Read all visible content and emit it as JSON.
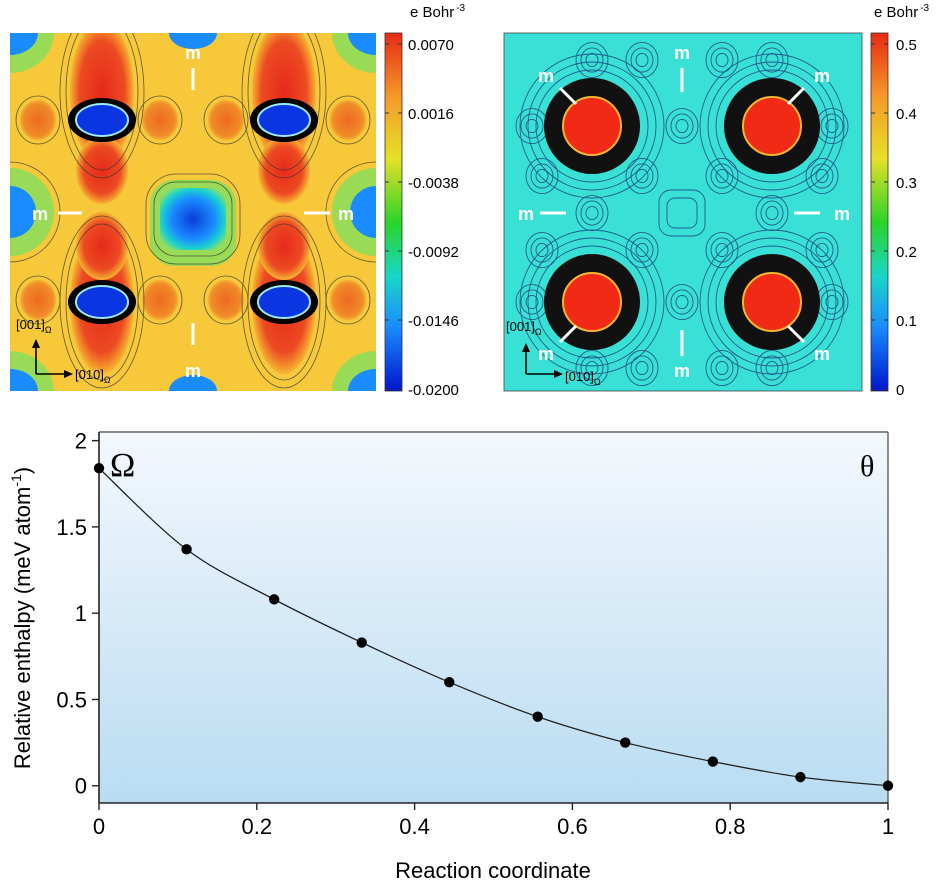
{
  "map_left": {
    "colorbar_unit": "e Bohr",
    "colorbar_unit_exp": "-3",
    "colorbar_ticks": [
      "0.0070",
      "0.0016",
      "-0.0038",
      "-0.0092",
      "-0.0146",
      "-0.0200"
    ],
    "colorbar_range": [
      -0.02,
      0.007
    ],
    "axis_vertical": "[001]",
    "axis_horizontal": "[010]",
    "axis_subscript": "Ω",
    "marker_label": "m"
  },
  "map_right": {
    "colorbar_unit": "e Bohr",
    "colorbar_unit_exp": "-3",
    "colorbar_ticks": [
      "0.5",
      "0.4",
      "0.3",
      "0.2",
      "0.1",
      "0"
    ],
    "colorbar_range": [
      0,
      0.5
    ],
    "axis_vertical": "[001]",
    "axis_horizontal": "[010]",
    "axis_subscript": "Ω",
    "marker_label": "m"
  },
  "chart_data": {
    "type": "line",
    "xlabel": "Reaction coordinate",
    "ylabel": "Relative enthalpy (meV atom",
    "ylabel_exp": "-1",
    "ylabel_close": ")",
    "xlim": [
      0,
      1
    ],
    "ylim": [
      -0.1,
      2.05
    ],
    "xticks": [
      "0",
      "0.2",
      "0.4",
      "0.6",
      "0.8",
      "1"
    ],
    "yticks": [
      "0",
      "0.5",
      "1",
      "1.5",
      "2"
    ],
    "annotation_left": "Ω",
    "annotation_right": "θ",
    "series": [
      {
        "x": [
          0,
          0.111,
          0.222,
          0.333,
          0.444,
          0.556,
          0.667,
          0.778,
          0.889,
          1.0
        ],
        "y": [
          1.84,
          1.37,
          1.08,
          0.83,
          0.6,
          0.4,
          0.25,
          0.14,
          0.05,
          0.0
        ]
      }
    ],
    "background_gradient": [
      "#f4f8fd",
      "#b9dcf2"
    ],
    "line_color": "#222222",
    "marker_color": "#000000"
  }
}
